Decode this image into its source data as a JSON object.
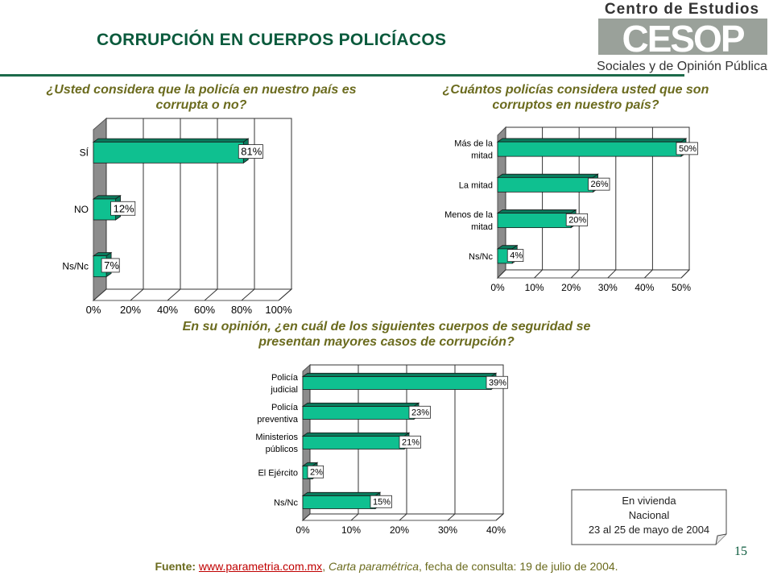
{
  "title": "CORRUPCIÓN EN CUERPOS POLICÍACOS",
  "logo": {
    "top": "Centro de Estudios",
    "mark": "CESOP",
    "bottom": "Sociales y de Opinión Pública"
  },
  "question1": [
    "¿Usted considera que la policía en nuestro país es",
    "corrupta o no?"
  ],
  "question2": [
    "¿Cuántos policías considera usted que son",
    "corruptos en nuestro país?"
  ],
  "question3": [
    "En su opinión, ¿en cuál de los siguientes cuerpos de seguridad se",
    "presentan mayores casos de corrupción?"
  ],
  "note": [
    "En vivienda",
    "Nacional",
    "23 al 25 de mayo de 2004"
  ],
  "page_number": "15",
  "source": {
    "label": "Fuente:",
    "link": "www.parametria.com.mx",
    "publication": "Carta paramétrica",
    "rest": ", fecha de consulta: 19 de julio de 2004."
  },
  "colors": {
    "bar": "#0fc090",
    "bar_dark": "#0a7a5c",
    "wall": "#8c8c8c",
    "title": "#0a5a3c",
    "question": "#6b6b1e"
  },
  "chart_data": [
    {
      "type": "bar",
      "orientation": "horizontal",
      "categories": [
        "SÍ",
        "NO",
        "Ns/Nc"
      ],
      "values": [
        81,
        12,
        7
      ],
      "labels": [
        "81%",
        "12%",
        "7%"
      ],
      "ticks": [
        "0%",
        "20%",
        "40%",
        "60%",
        "80%",
        "100%"
      ],
      "xlim": [
        0,
        100
      ],
      "grid": true
    },
    {
      "type": "bar",
      "orientation": "horizontal",
      "categories": [
        [
          "Más de la",
          "mitad"
        ],
        [
          "La mitad"
        ],
        [
          "Menos de la",
          "mitad"
        ],
        [
          "Ns/Nc"
        ]
      ],
      "values": [
        50,
        26,
        20,
        4
      ],
      "labels": [
        "50%",
        "26%",
        "20%",
        "4%"
      ],
      "ticks": [
        "0%",
        "10%",
        "20%",
        "30%",
        "40%",
        "50%"
      ],
      "xlim": [
        0,
        50
      ],
      "grid": true
    },
    {
      "type": "bar",
      "orientation": "horizontal",
      "categories": [
        [
          "Policía",
          "judicial"
        ],
        [
          "Policía",
          "preventiva"
        ],
        [
          "Ministerios",
          "públicos"
        ],
        [
          "El Ejército"
        ],
        [
          "Ns/Nc"
        ]
      ],
      "values": [
        39,
        23,
        21,
        2,
        15
      ],
      "labels": [
        "39%",
        "23%",
        "21%",
        "2%",
        "15%"
      ],
      "ticks": [
        "0%",
        "10%",
        "20%",
        "30%",
        "40%"
      ],
      "xlim": [
        0,
        40
      ],
      "grid": true
    }
  ]
}
